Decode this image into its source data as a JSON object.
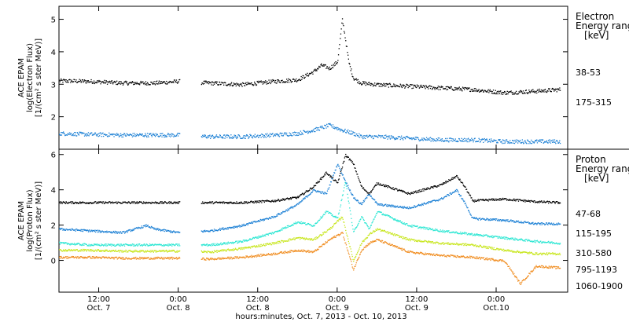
{
  "chart_data": [
    {
      "type": "scatter",
      "panel": "electron",
      "ylabel_lines": [
        "ACE EPAM",
        "log(Electron Flux)",
        "[1/(cm² s ster MeV)]"
      ],
      "yticks": [
        2,
        3,
        4,
        5
      ],
      "ylim": [
        1.0,
        5.4
      ],
      "legend_title": [
        "Electron",
        "Energy range",
        "[keV]"
      ],
      "series": [
        {
          "name": "38-53",
          "color": "#000000",
          "x": [
            0.0,
            0.2,
            0.4,
            0.6,
            0.75,
            0.95,
            1.15,
            1.35,
            1.5,
            1.6,
            1.65,
            1.7,
            1.75,
            1.78,
            1.8,
            1.82,
            1.85,
            1.9,
            2.0,
            2.2,
            2.4,
            2.6,
            2.8,
            3.0,
            3.15
          ],
          "y": [
            3.12,
            3.1,
            3.05,
            3.05,
            3.1,
            3.05,
            3.0,
            3.1,
            3.15,
            3.4,
            3.6,
            3.5,
            3.7,
            5.0,
            4.4,
            3.7,
            3.2,
            3.05,
            3.0,
            2.95,
            2.9,
            2.85,
            2.75,
            2.8,
            2.85
          ]
        },
        {
          "name": "175-315",
          "color": "#1a7fd4",
          "x": [
            0.0,
            0.2,
            0.4,
            0.6,
            0.75,
            0.95,
            1.15,
            1.35,
            1.5,
            1.6,
            1.7,
            1.78,
            1.85,
            1.9,
            2.0,
            2.2,
            2.4,
            2.6,
            2.8,
            3.0,
            3.15
          ],
          "y": [
            1.5,
            1.47,
            1.45,
            1.45,
            1.45,
            1.4,
            1.4,
            1.45,
            1.5,
            1.6,
            1.75,
            1.6,
            1.5,
            1.4,
            1.4,
            1.35,
            1.3,
            1.3,
            1.25,
            1.25,
            1.25
          ]
        }
      ]
    },
    {
      "type": "scatter",
      "panel": "proton",
      "ylabel_lines": [
        "ACE EPAM",
        "log(Proton Flux)",
        "[1/(cm² s ster MeV)]"
      ],
      "yticks": [
        0,
        2,
        4,
        6
      ],
      "ylim": [
        -1.8,
        6.3
      ],
      "legend_title": [
        "Proton",
        "Energy range",
        "[keV]"
      ],
      "series": [
        {
          "name": "47-68",
          "color": "#000000",
          "x": [
            0.0,
            0.2,
            0.4,
            0.6,
            0.75,
            0.95,
            1.15,
            1.35,
            1.5,
            1.6,
            1.68,
            1.75,
            1.8,
            1.85,
            1.9,
            1.95,
            2.0,
            2.2,
            2.4,
            2.5,
            2.55,
            2.6,
            2.8,
            3.0,
            3.15
          ],
          "y": [
            3.3,
            3.3,
            3.3,
            3.3,
            3.3,
            3.3,
            3.3,
            3.4,
            3.6,
            4.2,
            5.0,
            4.4,
            6.0,
            5.5,
            4.2,
            3.8,
            4.4,
            3.8,
            4.3,
            4.8,
            4.2,
            3.4,
            3.5,
            3.35,
            3.3
          ]
        },
        {
          "name": "115-195",
          "color": "#1a7fd4",
          "x": [
            0.0,
            0.2,
            0.4,
            0.55,
            0.6,
            0.75,
            0.95,
            1.15,
            1.35,
            1.5,
            1.6,
            1.68,
            1.75,
            1.8,
            1.85,
            1.9,
            1.95,
            2.0,
            2.2,
            2.4,
            2.5,
            2.55,
            2.6,
            2.8,
            3.0,
            3.15
          ],
          "y": [
            1.8,
            1.7,
            1.6,
            2.0,
            1.8,
            1.6,
            1.7,
            2.0,
            2.5,
            3.2,
            4.0,
            3.8,
            5.5,
            4.5,
            3.6,
            3.2,
            3.8,
            3.2,
            3.0,
            3.5,
            4.0,
            3.3,
            2.4,
            2.3,
            2.1,
            2.1
          ]
        },
        {
          "name": "310-580",
          "color": "#28e6d2",
          "x": [
            0.0,
            0.2,
            0.4,
            0.6,
            0.75,
            0.95,
            1.15,
            1.35,
            1.5,
            1.6,
            1.68,
            1.75,
            1.8,
            1.85,
            1.9,
            1.95,
            2.0,
            2.2,
            2.4,
            2.6,
            2.8,
            3.0,
            3.15
          ],
          "y": [
            1.0,
            0.9,
            0.9,
            0.9,
            0.9,
            0.9,
            1.1,
            1.6,
            2.2,
            2.0,
            2.8,
            2.4,
            4.5,
            1.6,
            2.5,
            1.8,
            2.8,
            2.0,
            1.7,
            1.5,
            1.3,
            1.1,
            1.0
          ]
        },
        {
          "name": "795-1193",
          "color": "#c8e61e",
          "x": [
            0.0,
            0.2,
            0.4,
            0.6,
            0.75,
            0.95,
            1.15,
            1.35,
            1.5,
            1.6,
            1.7,
            1.78,
            1.85,
            1.9,
            1.95,
            2.0,
            2.2,
            2.4,
            2.6,
            2.8,
            3.0,
            3.15
          ],
          "y": [
            0.6,
            0.6,
            0.55,
            0.55,
            0.55,
            0.5,
            0.7,
            1.0,
            1.3,
            1.2,
            1.8,
            2.5,
            0.0,
            1.0,
            1.5,
            1.8,
            1.2,
            1.0,
            0.9,
            0.6,
            0.4,
            0.4
          ]
        },
        {
          "name": "1060-1900",
          "color": "#f08c1e",
          "x": [
            0.0,
            0.2,
            0.4,
            0.6,
            0.75,
            0.95,
            1.15,
            1.35,
            1.5,
            1.6,
            1.7,
            1.78,
            1.85,
            1.9,
            1.95,
            2.0,
            2.2,
            2.4,
            2.6,
            2.8,
            2.9,
            3.0,
            3.15
          ],
          "y": [
            0.2,
            0.2,
            0.15,
            0.15,
            0.15,
            0.1,
            0.2,
            0.4,
            0.6,
            0.5,
            1.2,
            1.6,
            -0.5,
            0.6,
            1.0,
            1.2,
            0.5,
            0.3,
            0.2,
            0.0,
            -1.3,
            -0.3,
            -0.4
          ]
        }
      ]
    }
  ],
  "x_axis": {
    "ticks": [
      {
        "x": 0.25,
        "time": "12:00",
        "day": "Oct. 7"
      },
      {
        "x": 0.75,
        "time": "0:00",
        "day": "Oct. 8"
      },
      {
        "x": 1.25,
        "time": "12:00",
        "day": "Oct. 8"
      },
      {
        "x": 1.75,
        "time": "0:00",
        "day": "Oct. 9"
      },
      {
        "x": 2.25,
        "time": "12:00",
        "day": "Oct. 9"
      },
      {
        "x": 2.75,
        "time": "0:00",
        "day": "Oct.10"
      }
    ],
    "xlim": [
      0.0,
      3.2
    ],
    "label": "hours:minutes, Oct.  7, 2013 - Oct. 10, 2013"
  }
}
